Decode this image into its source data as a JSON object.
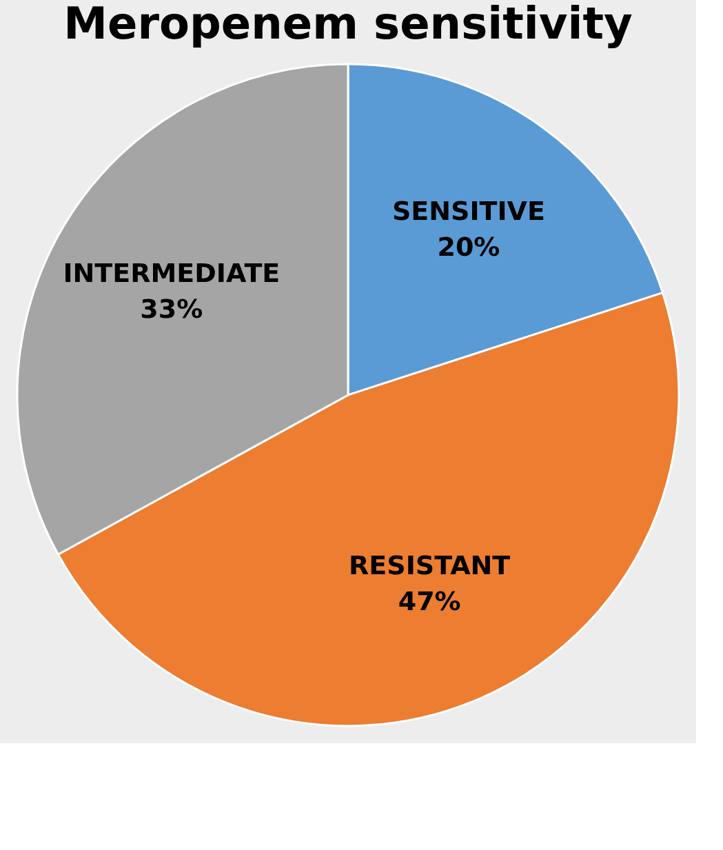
{
  "chart_data": {
    "type": "pie",
    "title": "Meropenem sensitivity",
    "categories": [
      "SENSITIVE",
      "RESISTANT",
      "INTERMEDIATE"
    ],
    "values": [
      20,
      47,
      33
    ],
    "colors": [
      "#5b9bd5",
      "#ed7d31",
      "#a5a5a5"
    ],
    "value_labels": [
      "20%",
      "47%",
      "33%"
    ],
    "legend": false
  }
}
